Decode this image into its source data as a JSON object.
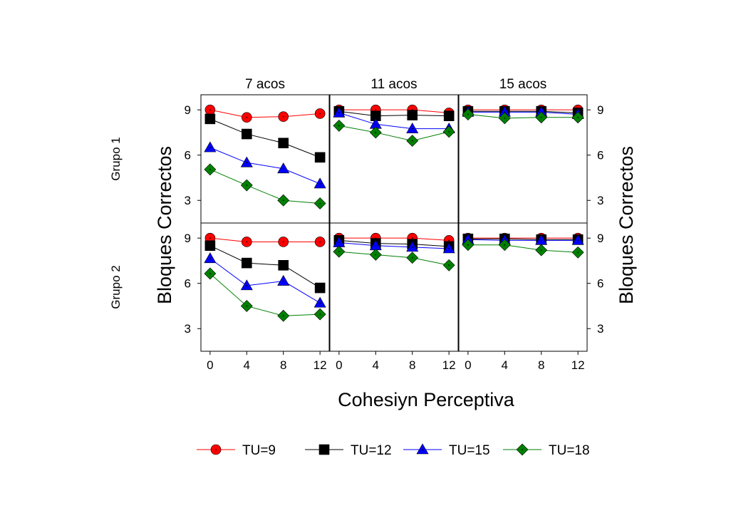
{
  "chart_data": {
    "type": "line",
    "xlabel": "Cohesiyn Perceptiva",
    "ylabel": "Bloques Correctos",
    "xticks": [
      0,
      4,
      8,
      12
    ],
    "yticks": [
      3,
      6,
      9
    ],
    "ylim": [
      1.5,
      10
    ],
    "xlim": [
      -1,
      13
    ],
    "columns": [
      "7 acos",
      "11 acos",
      "15 acos"
    ],
    "rows": [
      "Grupo 1",
      "Grupo 2"
    ],
    "legend_position": "bottom",
    "series_styles": [
      {
        "name": "TU=9",
        "color": "#ff0000",
        "marker": "circle"
      },
      {
        "name": "TU=12",
        "color": "#000000",
        "marker": "square"
      },
      {
        "name": "TU=15",
        "color": "#0000ff",
        "marker": "triangle"
      },
      {
        "name": "TU=18",
        "color": "#008000",
        "marker": "diamond"
      }
    ],
    "x": [
      0,
      4,
      8,
      12
    ],
    "panels": [
      {
        "row": "Grupo 1",
        "column": "7 acos",
        "series": [
          {
            "name": "TU=9",
            "values": [
              9.0,
              8.5,
              8.55,
              8.75
            ]
          },
          {
            "name": "TU=12",
            "values": [
              8.4,
              7.4,
              6.8,
              5.85
            ]
          },
          {
            "name": "TU=15",
            "values": [
              6.5,
              5.5,
              5.1,
              4.1
            ]
          },
          {
            "name": "TU=18",
            "values": [
              5.05,
              4.0,
              3.0,
              2.8
            ]
          }
        ]
      },
      {
        "row": "Grupo 1",
        "column": "11 acos",
        "series": [
          {
            "name": "TU=9",
            "values": [
              9.0,
              9.0,
              9.0,
              8.8
            ]
          },
          {
            "name": "TU=12",
            "values": [
              8.9,
              8.6,
              8.65,
              8.6
            ]
          },
          {
            "name": "TU=15",
            "values": [
              8.8,
              8.05,
              7.75,
              7.75
            ]
          },
          {
            "name": "TU=18",
            "values": [
              7.95,
              7.5,
              6.95,
              7.55
            ]
          }
        ]
      },
      {
        "row": "Grupo 1",
        "column": "15 acos",
        "series": [
          {
            "name": "TU=9",
            "values": [
              9.0,
              9.0,
              9.0,
              9.0
            ]
          },
          {
            "name": "TU=12",
            "values": [
              8.9,
              8.9,
              8.9,
              8.8
            ]
          },
          {
            "name": "TU=15",
            "values": [
              8.85,
              8.85,
              8.85,
              8.7
            ]
          },
          {
            "name": "TU=18",
            "values": [
              8.7,
              8.45,
              8.5,
              8.5
            ]
          }
        ]
      },
      {
        "row": "Grupo 2",
        "column": "7 acos",
        "series": [
          {
            "name": "TU=9",
            "values": [
              9.0,
              8.75,
              8.75,
              8.75
            ]
          },
          {
            "name": "TU=12",
            "values": [
              8.5,
              7.35,
              7.2,
              5.7
            ]
          },
          {
            "name": "TU=15",
            "values": [
              7.65,
              5.85,
              6.15,
              4.7
            ]
          },
          {
            "name": "TU=18",
            "values": [
              6.65,
              4.5,
              3.85,
              3.95
            ]
          }
        ]
      },
      {
        "row": "Grupo 2",
        "column": "11 acos",
        "series": [
          {
            "name": "TU=9",
            "values": [
              9.0,
              9.0,
              9.0,
              8.85
            ]
          },
          {
            "name": "TU=12",
            "values": [
              8.85,
              8.65,
              8.6,
              8.45
            ]
          },
          {
            "name": "TU=15",
            "values": [
              8.7,
              8.5,
              8.4,
              8.3
            ]
          },
          {
            "name": "TU=18",
            "values": [
              8.1,
              7.9,
              7.7,
              7.2
            ]
          }
        ]
      },
      {
        "row": "Grupo 2",
        "column": "15 acos",
        "series": [
          {
            "name": "TU=9",
            "values": [
              9.0,
              9.0,
              9.0,
              9.0
            ]
          },
          {
            "name": "TU=12",
            "values": [
              8.95,
              8.95,
              8.9,
              8.9
            ]
          },
          {
            "name": "TU=15",
            "values": [
              8.9,
              8.85,
              8.85,
              8.85
            ]
          },
          {
            "name": "TU=18",
            "values": [
              8.55,
              8.55,
              8.2,
              8.05
            ]
          }
        ]
      }
    ]
  }
}
